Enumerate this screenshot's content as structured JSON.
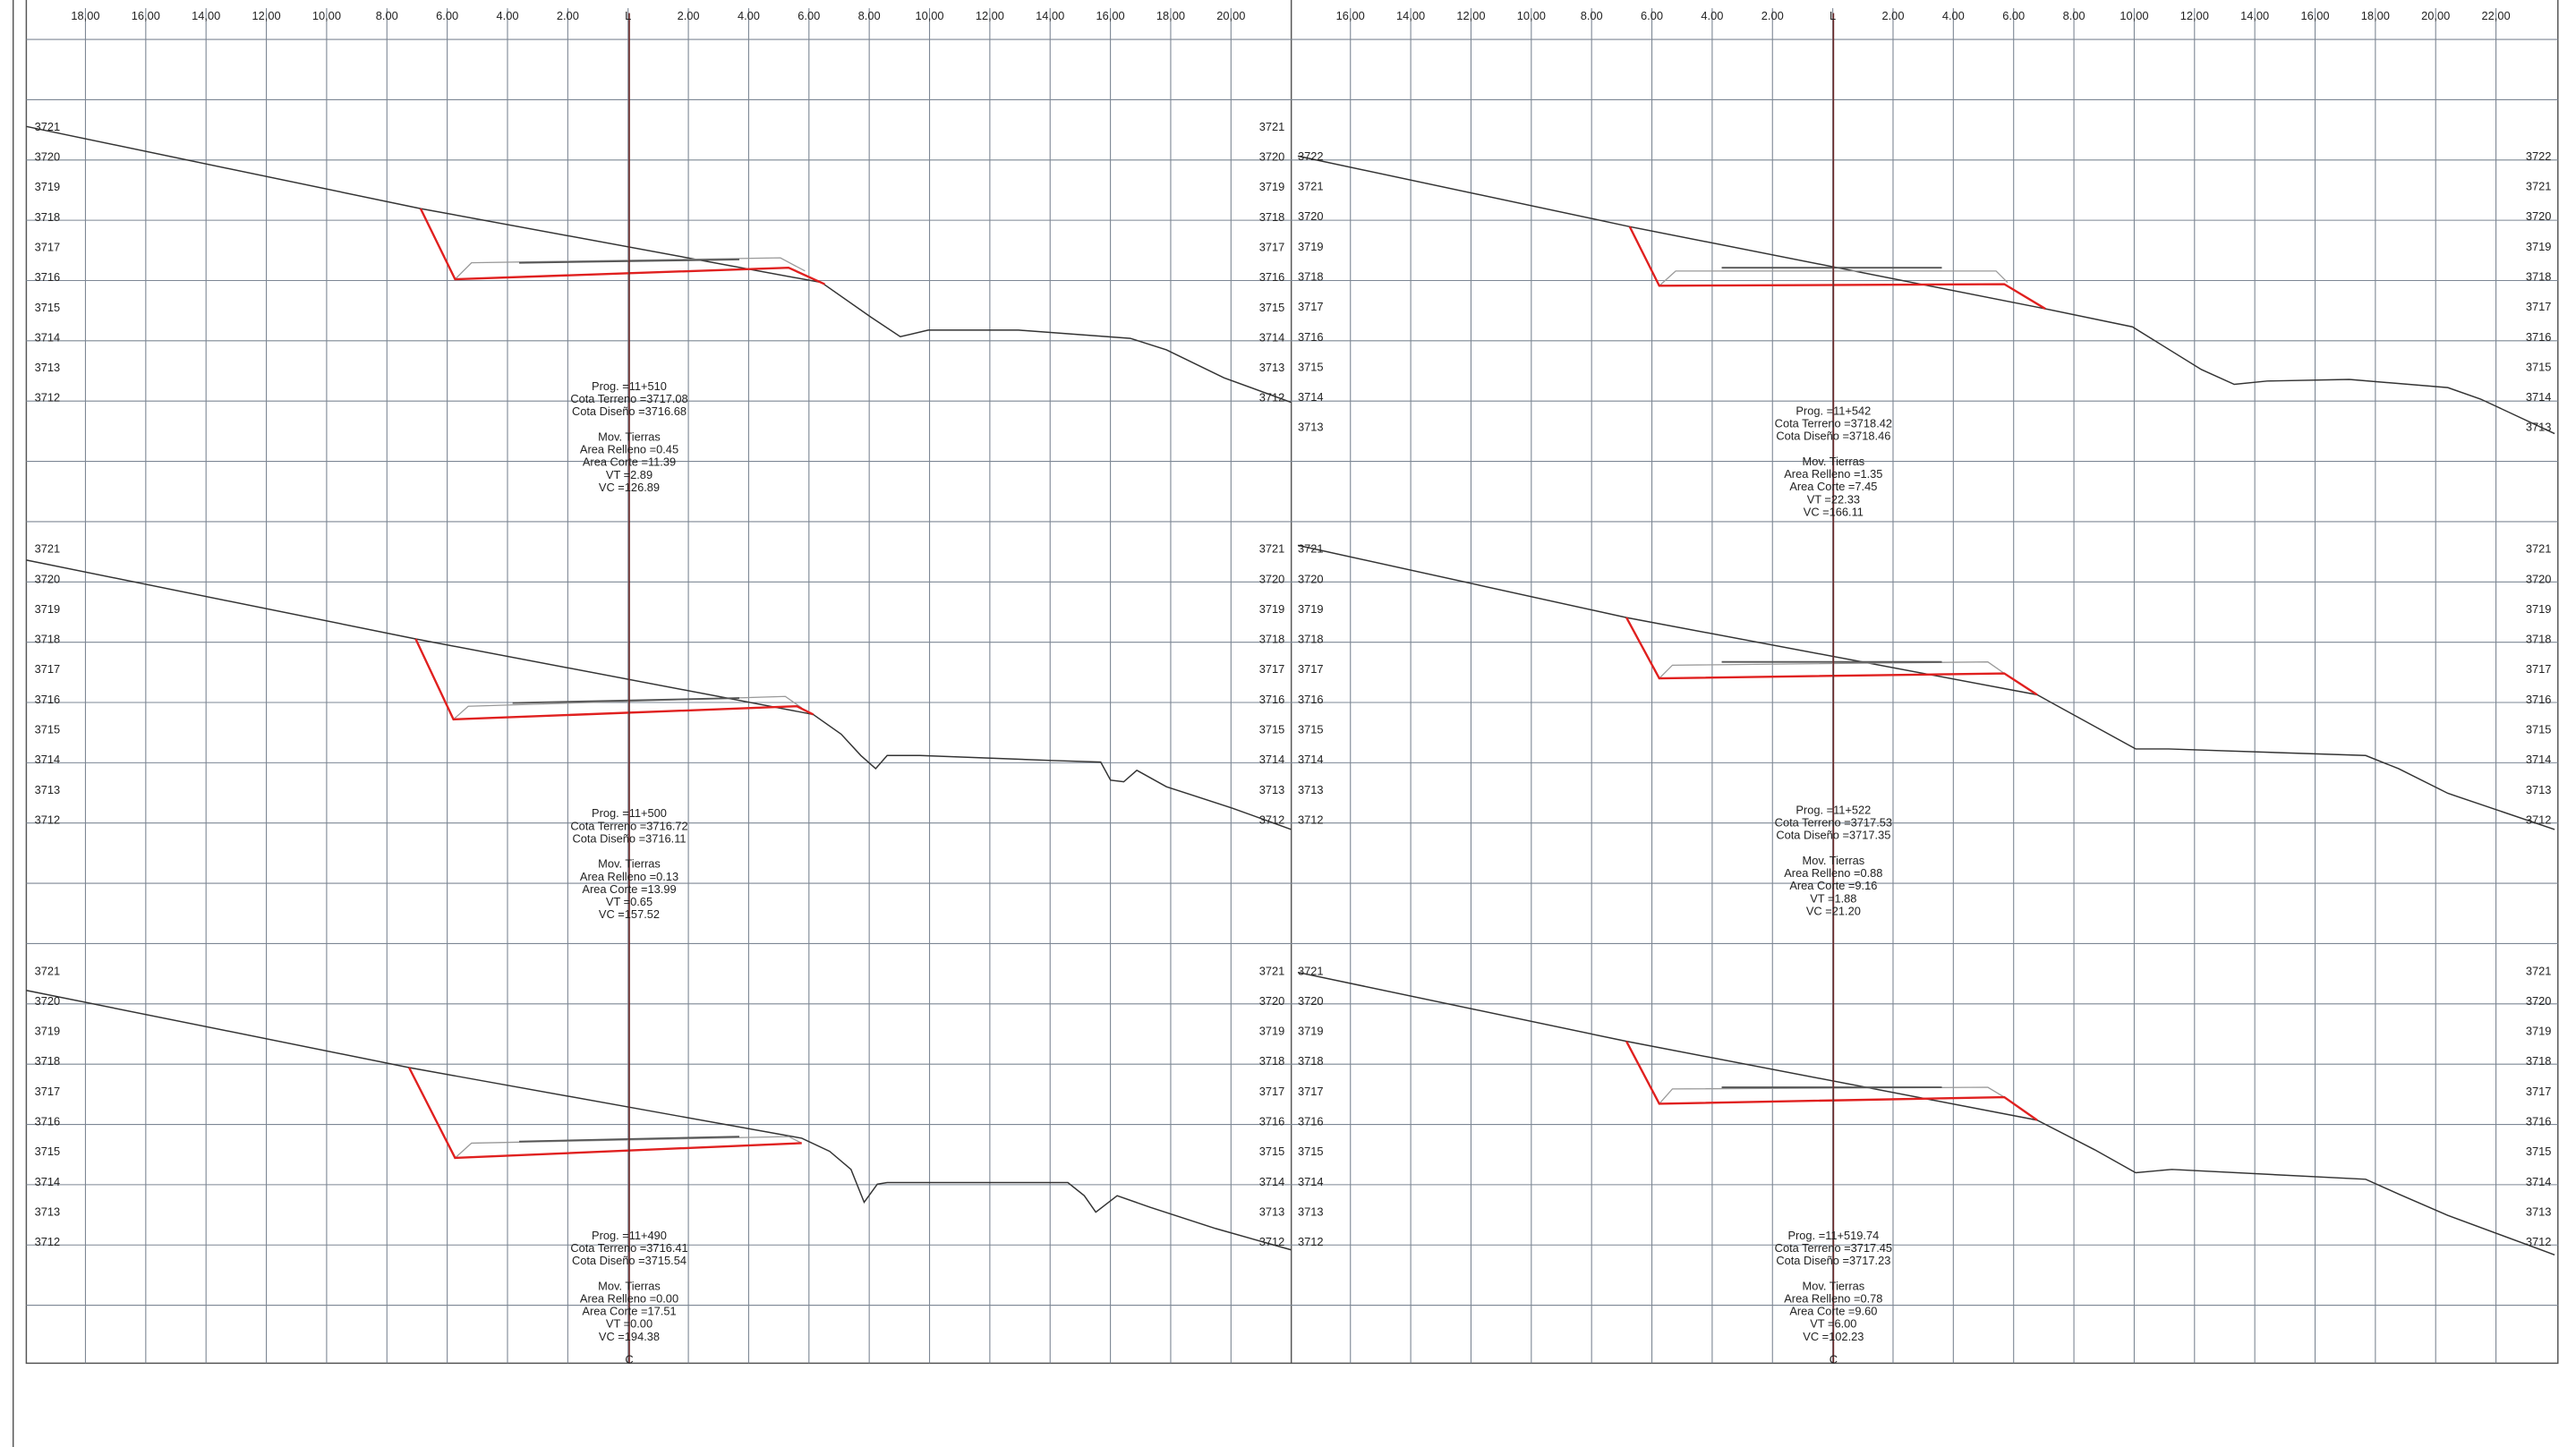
{
  "header": {
    "left_ticks": [
      "18,00",
      "16,00",
      "14,00",
      "12,00",
      "10,00",
      "8.00",
      "6.00",
      "4.00",
      "2.00",
      "L",
      "2.00",
      "4.00",
      "6.00",
      "8.00",
      "10,00",
      "12,00",
      "14,00",
      "16,00",
      "18,00",
      "20,00"
    ],
    "right_ticks": [
      "16,00",
      "14,00",
      "12,00",
      "10,00",
      "8.00",
      "6.00",
      "4.00",
      "2.00",
      "L",
      "2.00",
      "4.00",
      "6.00",
      "8.00",
      "10,00",
      "12,00",
      "14,00",
      "16,00",
      "18,00",
      "20,00",
      "22,00"
    ],
    "centerline_bottom": "C"
  },
  "sections": [
    {
      "elevations": [
        "3721",
        "3720",
        "3719",
        "3718",
        "3717",
        "3716",
        "3715",
        "3714",
        "3713",
        "3712"
      ],
      "info": [
        "Prog. =11+510",
        "Cota Terreno =3717.08",
        "Cota Diseño =3716.68",
        "Mov. Tierras",
        "Area Relleno =0.45",
        "Area Corte =11.39",
        "VT =2.89",
        "VC =126.89"
      ]
    },
    {
      "elevations": [
        "3722",
        "3721",
        "3720",
        "3719",
        "3718",
        "3717",
        "3716",
        "3715",
        "3714",
        "3713"
      ],
      "info": [
        "Prog. =11+542",
        "Cota Terreno =3718.42",
        "Cota Diseño =3718.46",
        "Mov. Tierras",
        "Area Relleno =1.35",
        "Area Corte =7.45",
        "VT =22.33",
        "VC =166.11"
      ]
    },
    {
      "elevations": [
        "3721",
        "3720",
        "3719",
        "3718",
        "3717",
        "3716",
        "3715",
        "3714",
        "3713",
        "3712"
      ],
      "info": [
        "Prog. =11+500",
        "Cota Terreno =3716.72",
        "Cota Diseño =3716.11",
        "Mov. Tierras",
        "Area Relleno =0.13",
        "Area Corte =13.99",
        "VT =0.65",
        "VC =157.52"
      ]
    },
    {
      "elevations": [
        "3721",
        "3720",
        "3719",
        "3718",
        "3717",
        "3716",
        "3715",
        "3714",
        "3713",
        "3712"
      ],
      "info": [
        "Prog. =11+522",
        "Cota Terreno =3717.53",
        "Cota Diseño =3717.35",
        "Mov. Tierras",
        "Area Relleno =0.88",
        "Area Corte =9.16",
        "VT =1.88",
        "VC =21.20"
      ]
    },
    {
      "elevations": [
        "3721",
        "3720",
        "3719",
        "3718",
        "3717",
        "3716",
        "3715",
        "3714",
        "3713",
        "3712"
      ],
      "info": [
        "Prog. =11+490",
        "Cota Terreno =3716.41",
        "Cota Diseño =3715.54",
        "Mov. Tierras",
        "Area Relleno =0.00",
        "Area Corte =17.51",
        "VT =0.00",
        "VC =194.38"
      ]
    },
    {
      "elevations": [
        "3721",
        "3720",
        "3719",
        "3718",
        "3717",
        "3716",
        "3715",
        "3714",
        "3713",
        "3712"
      ],
      "info": [
        "Prog. =11+519.74",
        "Cota Terreno =3717.45",
        "Cota Diseño =3717.23",
        "Mov. Tierras",
        "Area Relleno =0.78",
        "Area Corte =9.60",
        "VT =6.00",
        "VC =102.23"
      ]
    }
  ]
}
